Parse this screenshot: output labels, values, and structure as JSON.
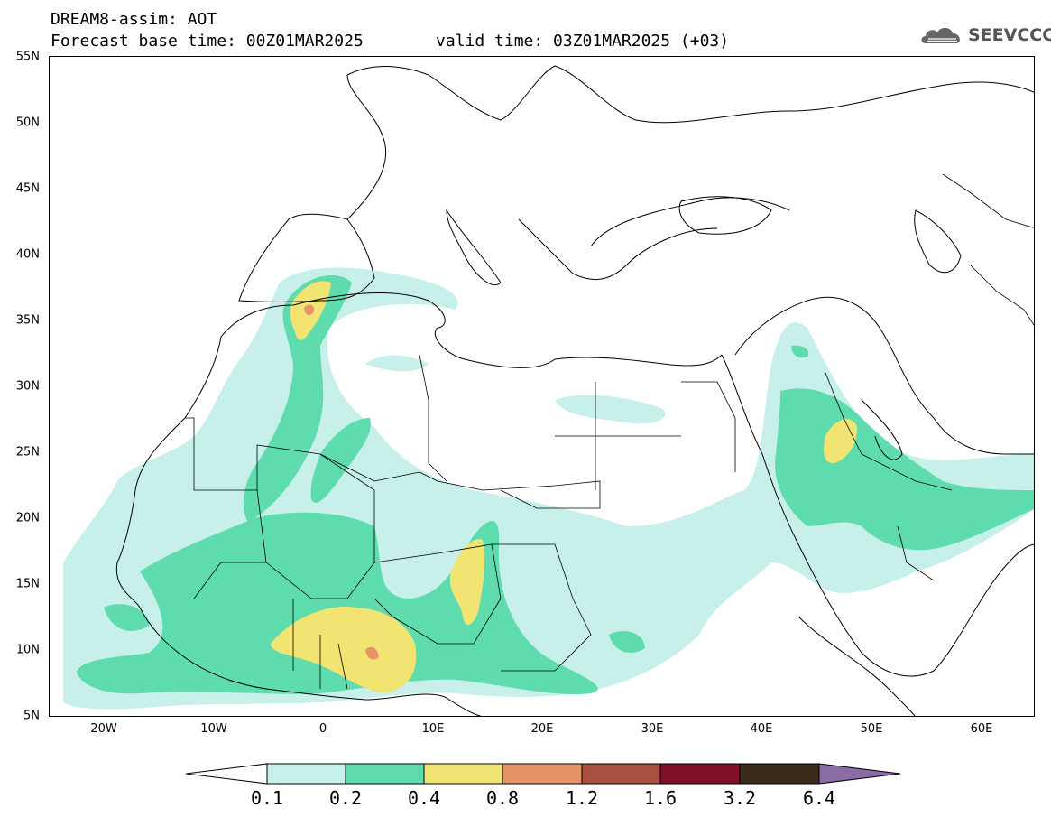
{
  "header": {
    "title": "DREAM8-assim: AOT",
    "base_time": "Forecast base time: 00Z01MAR2025",
    "valid_time": "valid time: 03Z01MAR2025 (+03)",
    "logo_text": "SEEVCCC"
  },
  "axes": {
    "lat_labels": [
      "55N",
      "50N",
      "45N",
      "40N",
      "35N",
      "30N",
      "25N",
      "20N",
      "15N",
      "10N",
      "5N"
    ],
    "lon_labels": [
      "20W",
      "10W",
      "0",
      "10E",
      "20E",
      "30E",
      "40E",
      "50E",
      "60E"
    ]
  },
  "legend": {
    "levels": [
      "0.1",
      "0.2",
      "0.4",
      "0.8",
      "1.2",
      "1.6",
      "3.2",
      "6.4"
    ],
    "colors": [
      "#ffffff",
      "#c8f0ea",
      "#5fdcae",
      "#f2e472",
      "#e89268",
      "#a8503f",
      "#80102a",
      "#3a2a1a",
      "#8a6ca6"
    ]
  },
  "map": {
    "lat_range": [
      5,
      55
    ],
    "lon_range": [
      -25,
      65
    ],
    "outline_color": "#000000"
  }
}
